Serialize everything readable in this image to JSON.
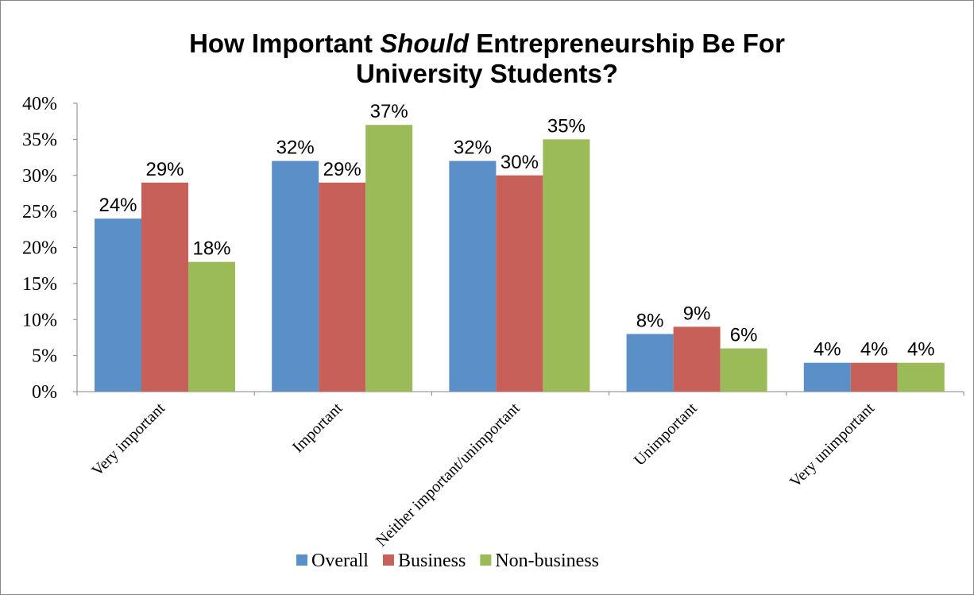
{
  "chart_data": {
    "type": "bar",
    "title_parts": [
      "How Important ",
      "Should",
      " Entrepreneurship Be For",
      "University Students?"
    ],
    "categories": [
      "Very important",
      "Important",
      "Neither important/unimportant",
      "Unimportant",
      "Very unimportant"
    ],
    "series": [
      {
        "name": "Overall",
        "color": "#5b8fc7",
        "values": [
          24,
          32,
          32,
          8,
          4
        ],
        "labels": [
          "24%",
          "32%",
          "32%",
          "8%",
          "4%"
        ]
      },
      {
        "name": "Business",
        "color": "#c8605a",
        "values": [
          29,
          29,
          30,
          9,
          4
        ],
        "labels": [
          "29%",
          "29%",
          "30%",
          "9%",
          "4%"
        ]
      },
      {
        "name": "Non-business",
        "color": "#9bbb59",
        "values": [
          18,
          37,
          35,
          6,
          4
        ],
        "labels": [
          "18%",
          "37%",
          "35%",
          "6%",
          "4%"
        ]
      }
    ],
    "yticks": [
      "0%",
      "5%",
      "10%",
      "15%",
      "20%",
      "25%",
      "30%",
      "35%",
      "40%"
    ],
    "ylim": [
      0,
      40
    ],
    "grid": false,
    "legend_position": "bottom"
  }
}
